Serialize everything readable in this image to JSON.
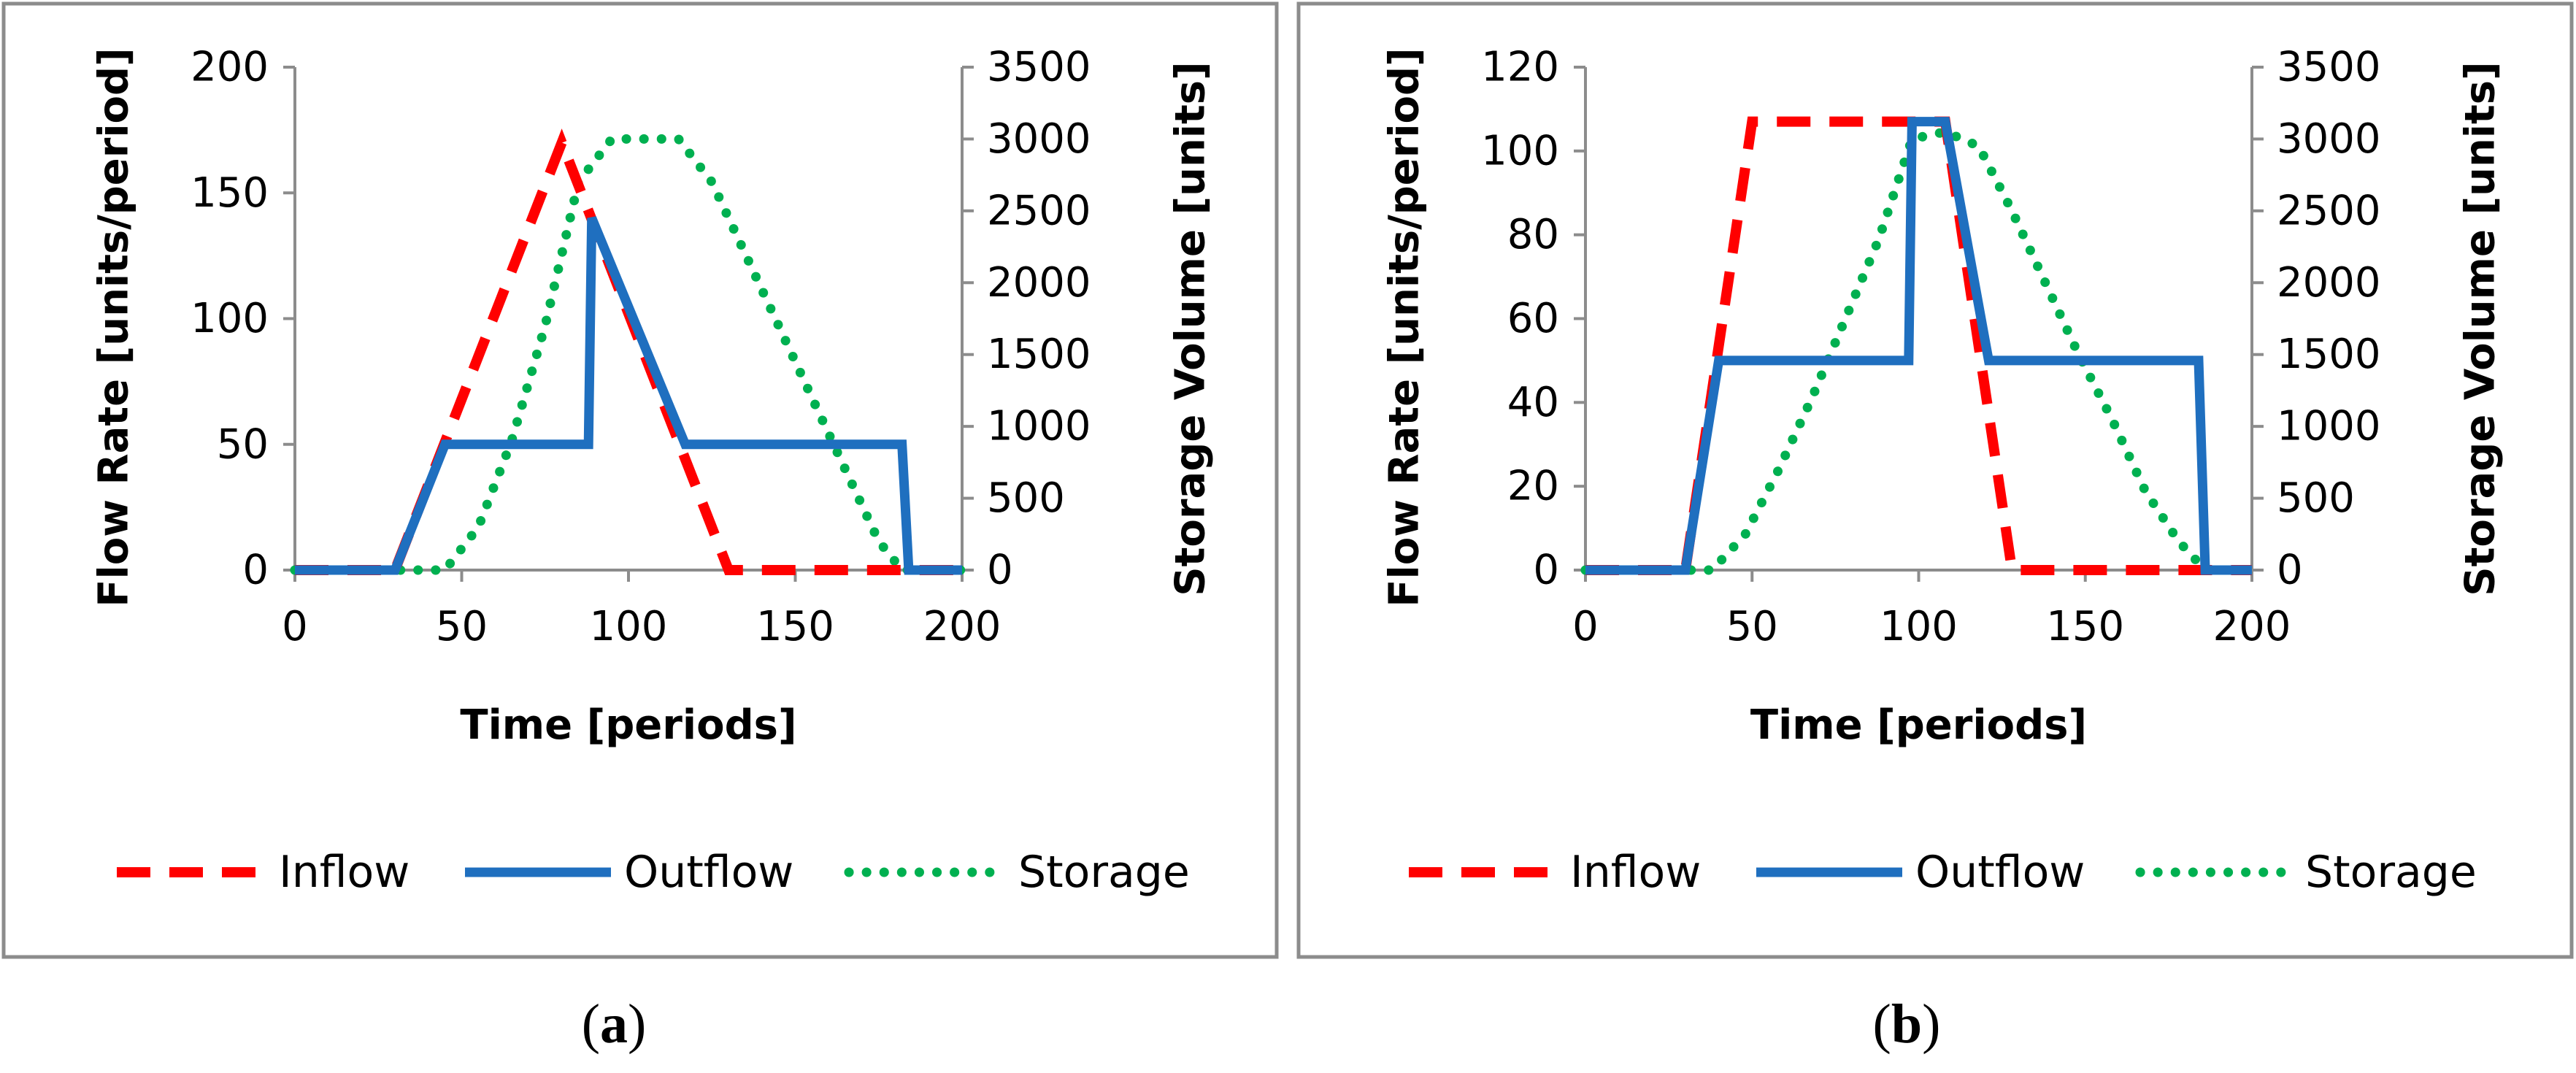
{
  "chart_data": [
    {
      "type": "line",
      "panel_label": "a",
      "xlabel": "Time [periods]",
      "ylabel": "Flow Rate [units/period]",
      "y2label": "Storage Volume [units]",
      "xlim": [
        0,
        200
      ],
      "ylim": [
        0,
        200
      ],
      "y2lim": [
        0,
        3500
      ],
      "xticks": [
        0,
        50,
        100,
        150,
        200
      ],
      "yticks": [
        0,
        50,
        100,
        150,
        200
      ],
      "y2ticks": [
        0,
        500,
        1000,
        1500,
        2000,
        2500,
        3000,
        3500
      ],
      "legend_position": "bottom",
      "series": [
        {
          "name": "Inflow",
          "axis": "left",
          "style": "dashed",
          "color": "#ff0000",
          "x": [
            0,
            30,
            80,
            130,
            200
          ],
          "y": [
            0,
            0,
            170,
            0,
            0
          ]
        },
        {
          "name": "Outflow",
          "axis": "left",
          "style": "solid",
          "color": "#1f6fbf",
          "x": [
            0,
            30,
            45,
            88,
            89,
            117,
            182,
            184,
            200
          ],
          "y": [
            0,
            0,
            50,
            50,
            140,
            50,
            50,
            0,
            0
          ]
        },
        {
          "name": "Storage",
          "axis": "right",
          "style": "dotted",
          "color": "#00b050",
          "x": [
            0,
            45,
            55,
            65,
            75,
            85,
            95,
            105,
            115,
            125,
            135,
            145,
            155,
            165,
            175,
            182,
            200
          ],
          "y": [
            0,
            0,
            300,
            900,
            1700,
            2700,
            3000,
            3000,
            3000,
            2700,
            2200,
            1700,
            1200,
            700,
            200,
            0,
            0
          ]
        }
      ]
    },
    {
      "type": "line",
      "panel_label": "b",
      "xlabel": "Time [periods]",
      "ylabel": "Flow Rate [units/period]",
      "y2label": "Storage Volume [units]",
      "xlim": [
        0,
        200
      ],
      "ylim": [
        0,
        120
      ],
      "y2lim": [
        0,
        3500
      ],
      "xticks": [
        0,
        50,
        100,
        150,
        200
      ],
      "yticks": [
        0,
        20,
        40,
        60,
        80,
        100,
        120
      ],
      "y2ticks": [
        0,
        500,
        1000,
        1500,
        2000,
        2500,
        3000,
        3500
      ],
      "legend_position": "bottom",
      "series": [
        {
          "name": "Inflow",
          "axis": "left",
          "style": "dashed",
          "color": "#ff0000",
          "x": [
            0,
            30,
            50,
            108,
            128,
            200
          ],
          "y": [
            0,
            0,
            107,
            107,
            0,
            0
          ]
        },
        {
          "name": "Outflow",
          "axis": "left",
          "style": "solid",
          "color": "#1f6fbf",
          "x": [
            0,
            30,
            40,
            97,
            98,
            108,
            121,
            184,
            186,
            200
          ],
          "y": [
            0,
            0,
            50,
            50,
            107,
            107,
            50,
            50,
            0,
            0
          ]
        },
        {
          "name": "Storage",
          "axis": "right",
          "style": "dotted",
          "color": "#00b050",
          "x": [
            0,
            38,
            48,
            58,
            68,
            78,
            88,
            98,
            108,
            118,
            128,
            138,
            148,
            158,
            168,
            178,
            186,
            200
          ],
          "y": [
            0,
            0,
            250,
            700,
            1200,
            1750,
            2300,
            3000,
            3050,
            2950,
            2500,
            2000,
            1500,
            1050,
            550,
            200,
            0,
            0
          ]
        }
      ]
    }
  ]
}
